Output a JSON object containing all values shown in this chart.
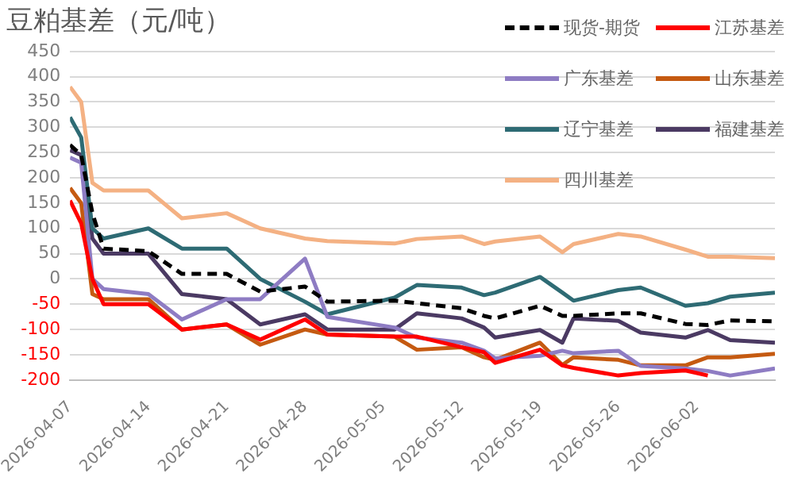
{
  "chart_data": {
    "type": "line",
    "title": "豆粕基差（元/吨）",
    "legend": "top right",
    "grid": "y",
    "marker": "none",
    "x": [
      "2026-04-07",
      "2026-04-08",
      "2026-04-09",
      "2026-04-10",
      "2026-04-14",
      "2026-04-17",
      "2026-04-21",
      "2026-04-24",
      "2026-04-28",
      "2026-04-30",
      "2026-05-06",
      "2026-05-08",
      "2026-05-12",
      "2026-05-14",
      "2026-05-15",
      "2026-05-19",
      "2026-05-21",
      "2026-05-22",
      "2026-05-26",
      "2026-05-28",
      "2026-06-01",
      "2026-06-03",
      "2026-06-05",
      "2026-06-09"
    ],
    "xlim": [
      "2026-04-07",
      "2026-06-09"
    ],
    "xticks": [
      "2026-04-07",
      "2026-04-14",
      "2026-04-21",
      "2026-04-28",
      "2026-05-05",
      "2026-05-12",
      "2026-05-19",
      "2026-05-26",
      "2026-06-02"
    ],
    "ylim": [
      -200,
      450
    ],
    "yticks": [
      -200,
      -150,
      -100,
      -50,
      0,
      50,
      100,
      150,
      200,
      250,
      300,
      350,
      400,
      450
    ],
    "series": [
      {
        "name": "现货-期货",
        "color": "#000000",
        "line_style": "dashed",
        "values": [
          265,
          245,
          130,
          60,
          55,
          10,
          10,
          -25,
          -15,
          -45,
          -43,
          -48,
          -58,
          -73,
          -78,
          -53,
          -73,
          -73,
          -68,
          -68,
          -89,
          -91,
          -82,
          -84
        ]
      },
      {
        "name": "江苏基差",
        "color": "#ff0000",
        "values": [
          155,
          110,
          0,
          -50,
          -50,
          -100,
          -90,
          -120,
          -80,
          -110,
          -114,
          -114,
          -135,
          -145,
          -166,
          -140,
          -171,
          -176,
          -191,
          -186,
          -181,
          -191,
          null,
          null
        ]
      },
      {
        "name": "广东基差",
        "color": "#8e7cc3",
        "values": [
          240,
          230,
          0,
          -20,
          -30,
          -80,
          -40,
          -40,
          40,
          -75,
          -96,
          -116,
          -126,
          -142,
          -157,
          -152,
          -142,
          -147,
          -142,
          -172,
          -177,
          -182,
          -191,
          -177
        ]
      },
      {
        "name": "山东基差",
        "color": "#c55a11",
        "values": [
          180,
          150,
          -30,
          -40,
          -40,
          -100,
          -90,
          -130,
          -100,
          -110,
          -114,
          -140,
          -135,
          -155,
          -160,
          -126,
          -170,
          -155,
          -160,
          -171,
          -171,
          -155,
          -155,
          -148
        ]
      },
      {
        "name": "辽宁基差",
        "color": "#2e6b74",
        "values": [
          320,
          280,
          100,
          80,
          100,
          60,
          60,
          0,
          -45,
          -70,
          -37,
          -12,
          -17,
          -32,
          -27,
          4,
          -27,
          -43,
          -22,
          -17,
          -53,
          -48,
          -35,
          -27
        ]
      },
      {
        "name": "福建基差",
        "color": "#4b3a63",
        "values": [
          255,
          245,
          80,
          50,
          50,
          -30,
          -40,
          -90,
          -70,
          -100,
          -100,
          -68,
          -78,
          -96,
          -116,
          -101,
          -126,
          -78,
          -83,
          -106,
          -116,
          -101,
          -121,
          -126
        ]
      },
      {
        "name": "四川基差",
        "color": "#f4b183",
        "values": [
          380,
          350,
          190,
          175,
          175,
          120,
          130,
          100,
          80,
          75,
          70,
          79,
          84,
          69,
          74,
          84,
          53,
          69,
          89,
          84,
          58,
          44,
          44,
          41
        ]
      }
    ]
  }
}
